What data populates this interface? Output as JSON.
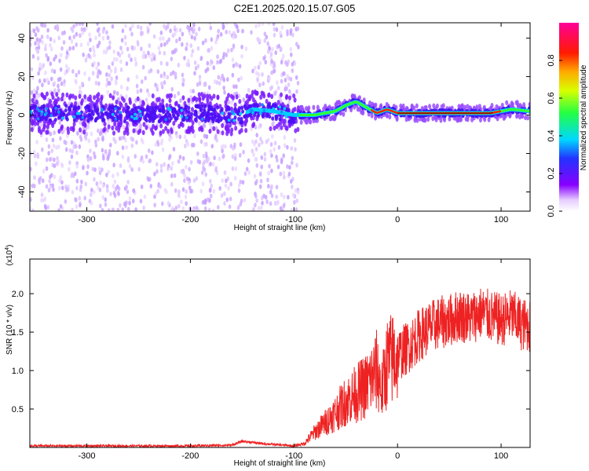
{
  "title": "C2E1.2025.020.15.07.G05",
  "chart_data": [
    {
      "type": "heatmap",
      "xlabel": "Height of straight line (km)",
      "ylabel": "Frequency (Hz)",
      "xlim": [
        -355,
        128
      ],
      "ylim": [
        -50,
        48
      ],
      "xticks": [
        -300,
        -200,
        -100,
        0,
        100
      ],
      "yticks": [
        -40,
        -20,
        0,
        20,
        40
      ],
      "colorbar": {
        "label": "Normalized spectral amplitude",
        "range": [
          0,
          1
        ],
        "ticks": [
          0.0,
          0.2,
          0.4,
          0.6,
          0.8
        ]
      },
      "ridge": {
        "x": [
          -355,
          -300,
          -250,
          -200,
          -150,
          -140,
          -120,
          -100,
          -80,
          -70,
          -60,
          -50,
          -40,
          -30,
          -20,
          -10,
          0,
          20,
          40,
          60,
          80,
          90,
          100,
          110,
          128
        ],
        "y": [
          1,
          1,
          0,
          1,
          0,
          3,
          2,
          0,
          0,
          1,
          2,
          5,
          7,
          4,
          1,
          3,
          1,
          1,
          1,
          1,
          1,
          1,
          2,
          3,
          2
        ]
      }
    },
    {
      "type": "line",
      "xlabel": "Height of straight line (km)",
      "ylabel": "SNR (10 * v/v)",
      "y_scale_label": "(x10",
      "y_scale_exp": "4",
      "xlim": [
        -355,
        128
      ],
      "ylim": [
        0,
        2.45
      ],
      "xticks": [
        -300,
        -200,
        -100,
        0,
        100
      ],
      "yticks": [
        0.5,
        1.0,
        1.5,
        2.0
      ],
      "color": "#ee2222",
      "x": [
        -355,
        -300,
        -250,
        -200,
        -160,
        -150,
        -130,
        -110,
        -100,
        -90,
        -80,
        -70,
        -60,
        -50,
        -40,
        -30,
        -20,
        -15,
        -10,
        0,
        10,
        20,
        30,
        40,
        50,
        60,
        70,
        80,
        90,
        100,
        110,
        120,
        128
      ],
      "y": [
        0.02,
        0.02,
        0.02,
        0.02,
        0.03,
        0.08,
        0.05,
        0.03,
        0.02,
        0.05,
        0.2,
        0.32,
        0.45,
        0.6,
        0.7,
        0.8,
        1.0,
        0.75,
        1.1,
        1.2,
        1.3,
        1.45,
        1.55,
        1.62,
        1.65,
        1.72,
        1.68,
        1.75,
        1.7,
        1.65,
        1.72,
        1.6,
        1.58
      ]
    }
  ]
}
